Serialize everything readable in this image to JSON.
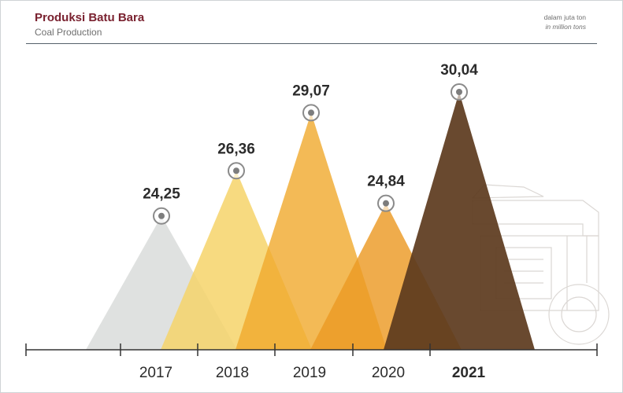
{
  "header": {
    "title": "Produksi Batu Bara",
    "subtitle": "Coal Production",
    "unit_id": "dalam juta ton",
    "unit_en": "in million tons"
  },
  "chart_data": {
    "type": "bar",
    "title": "Produksi Batu Bara",
    "subtitle": "Coal Production",
    "categories": [
      "2017",
      "2018",
      "2019",
      "2020",
      "2021"
    ],
    "series": [
      {
        "values": [
          24.25,
          26.36,
          29.07,
          24.84,
          30.04
        ],
        "labels": [
          "24,25",
          "26,36",
          "29,07",
          "24,84",
          "30,04"
        ]
      }
    ],
    "highlight_category": "2021",
    "colors": [
      "#d9dcda",
      "#f6d36a",
      "#f0a92c",
      "#ec9a24",
      "#5c3a1d"
    ],
    "ylim": [
      0,
      30.04
    ],
    "grid": false,
    "legend": "none"
  }
}
